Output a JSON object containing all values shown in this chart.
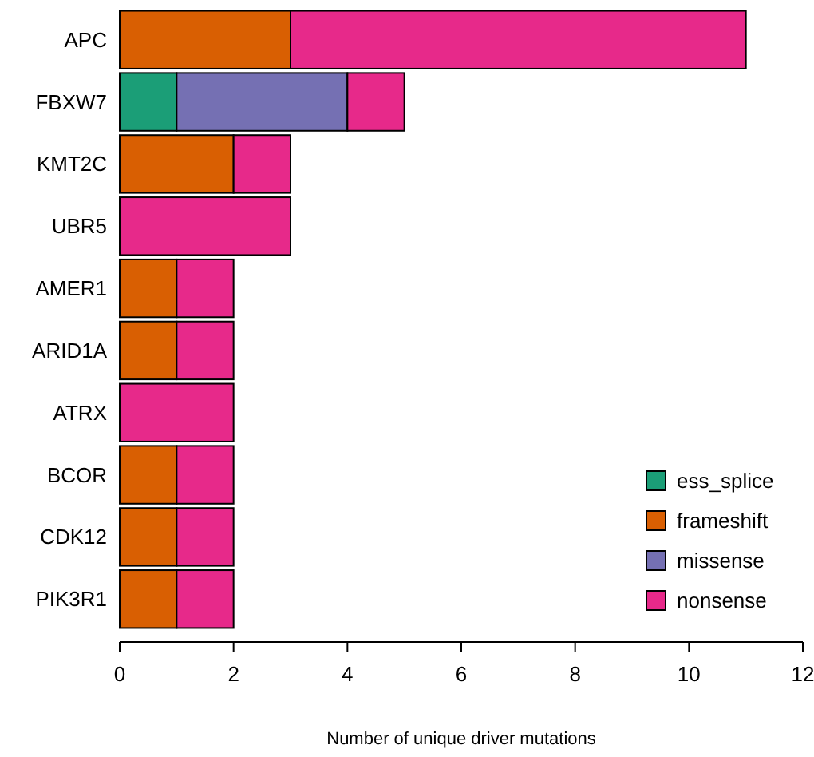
{
  "chart_data": {
    "type": "bar",
    "orientation": "horizontal",
    "stacked": true,
    "xlabel": "Number of unique driver mutations",
    "categories": [
      "APC",
      "FBXW7",
      "KMT2C",
      "UBR5",
      "AMER1",
      "ARID1A",
      "ATRX",
      "BCOR",
      "CDK12",
      "PIK3R1"
    ],
    "series": [
      {
        "name": "ess_splice",
        "color": "#1b9e77",
        "values": [
          0,
          1,
          0,
          0,
          0,
          0,
          0,
          0,
          0,
          0
        ]
      },
      {
        "name": "frameshift",
        "color": "#d95f02",
        "values": [
          3,
          0,
          2,
          0,
          1,
          1,
          0,
          1,
          1,
          1
        ]
      },
      {
        "name": "missense",
        "color": "#7570b3",
        "values": [
          0,
          3,
          0,
          0,
          0,
          0,
          0,
          0,
          0,
          0
        ]
      },
      {
        "name": "nonsense",
        "color": "#e7298a",
        "values": [
          8,
          1,
          1,
          3,
          1,
          1,
          2,
          1,
          1,
          1
        ]
      }
    ],
    "xlim": [
      0,
      12
    ],
    "xticks": [
      0,
      2,
      4,
      6,
      8,
      10,
      12
    ],
    "grid": false,
    "legend": "bottom right"
  }
}
